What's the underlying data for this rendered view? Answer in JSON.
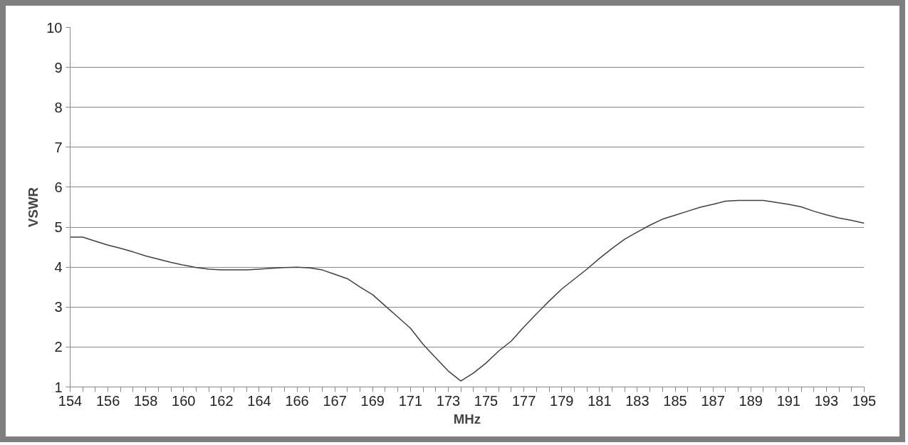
{
  "chart_data": {
    "type": "line",
    "xlabel": "MHz",
    "ylabel": "VSWR",
    "categories": [
      "154",
      null,
      null,
      "156",
      null,
      null,
      "158",
      null,
      null,
      "160",
      null,
      null,
      "162",
      null,
      null,
      "164",
      null,
      null,
      "166",
      null,
      null,
      "167",
      null,
      null,
      "169",
      null,
      null,
      "171",
      null,
      null,
      "173",
      null,
      null,
      "175",
      null,
      null,
      "177",
      null,
      null,
      "179",
      null,
      null,
      "181",
      null,
      null,
      "183",
      null,
      null,
      "185",
      null,
      null,
      "187",
      null,
      null,
      "189",
      null,
      null,
      "191",
      null,
      null,
      "193",
      null,
      null,
      "195"
    ],
    "series": [
      {
        "color": "#404040",
        "values": [
          4.75,
          4.75,
          4.65,
          4.55,
          4.47,
          4.38,
          4.28,
          4.2,
          4.12,
          4.05,
          3.99,
          3.95,
          3.93,
          3.93,
          3.93,
          3.95,
          3.97,
          3.99,
          4.0,
          3.98,
          3.93,
          3.82,
          3.71,
          3.5,
          3.31,
          3.03,
          2.75,
          2.47,
          2.07,
          1.73,
          1.4,
          1.15,
          1.35,
          1.6,
          1.9,
          2.15,
          2.5,
          2.83,
          3.15,
          3.45,
          3.7,
          3.95,
          4.22,
          4.47,
          4.7,
          4.88,
          5.05,
          5.2,
          5.3,
          5.4,
          5.5,
          5.57,
          5.65,
          5.67,
          5.67,
          5.67,
          5.62,
          5.57,
          5.51,
          5.4,
          5.31,
          5.23,
          5.17,
          5.1
        ]
      }
    ],
    "ylim": [
      1,
      10
    ],
    "yticks": [
      1,
      2,
      3,
      4,
      5,
      6,
      7,
      8,
      9,
      10
    ],
    "grid": "y",
    "marker": "none",
    "line_style": "solid"
  }
}
